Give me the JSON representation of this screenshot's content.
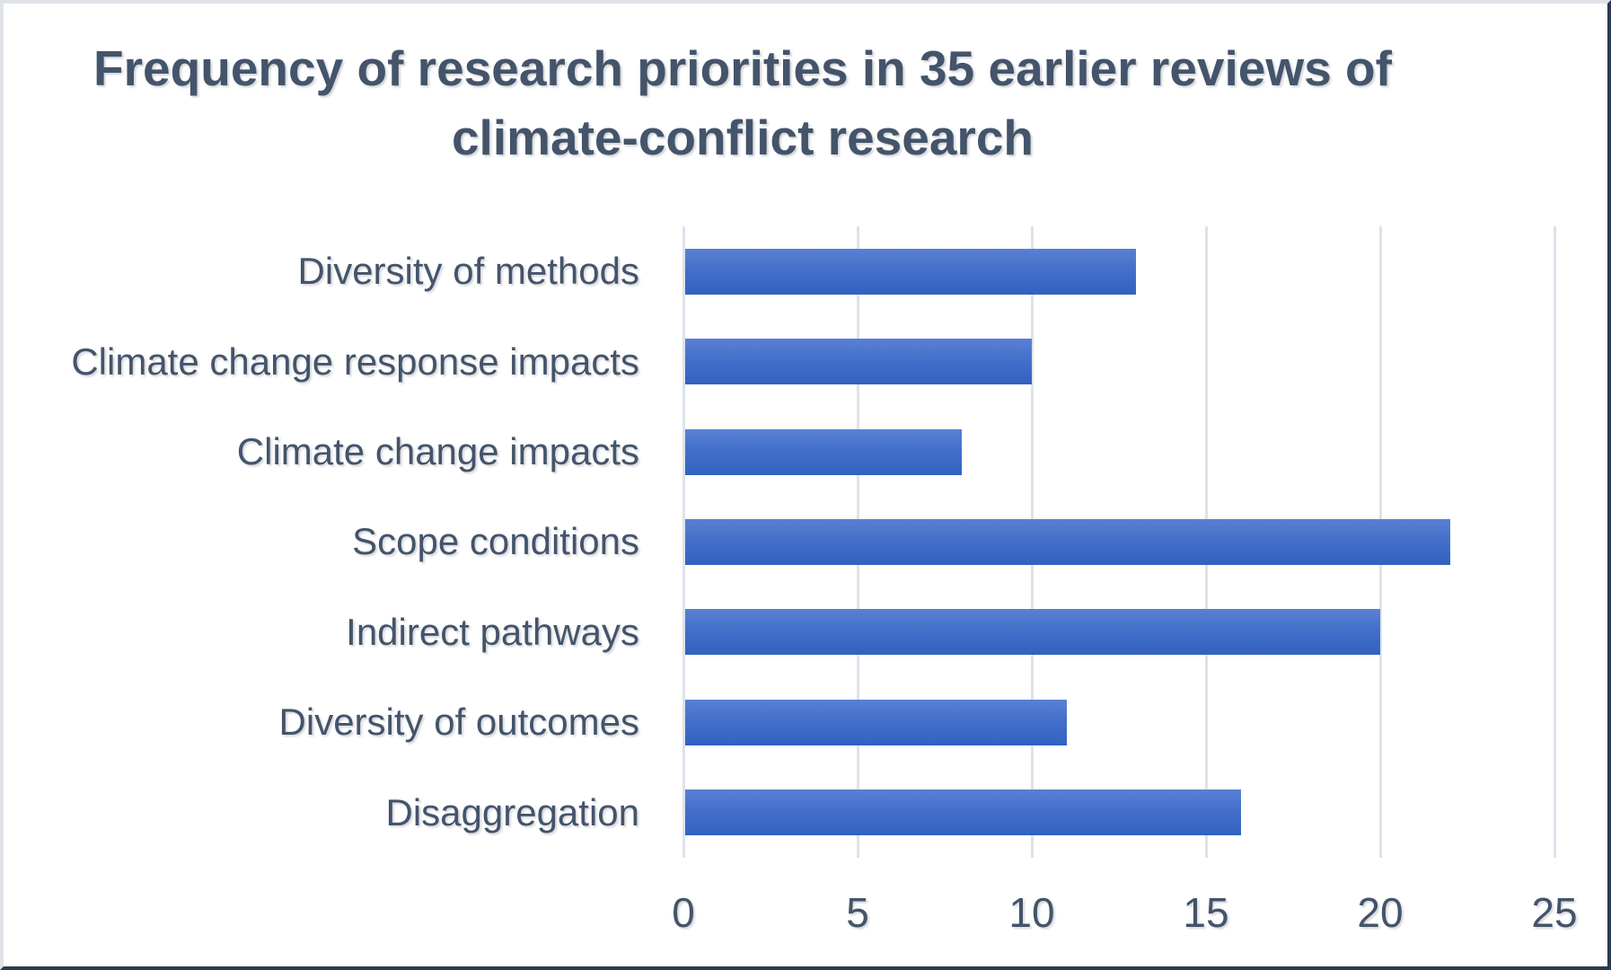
{
  "page": {
    "background": "#ffffff",
    "border_light_color": "#dfe3e8",
    "border_dark_color": "#2b3a4e",
    "text_color": "#44546A"
  },
  "chart_data": {
    "type": "bar",
    "orientation": "horizontal",
    "title": "Frequency of research priorities in 35 earlier reviews of climate-conflict research",
    "title_lines": [
      "Frequency of research priorities in 35 earlier reviews of",
      "climate-conflict research"
    ],
    "categories": [
      "Diversity of methods",
      "Climate change response impacts",
      "Climate change impacts",
      "Scope conditions",
      "Indirect pathways",
      "Diversity of outcomes",
      "Disaggregation"
    ],
    "values": [
      13,
      10,
      8,
      22,
      20,
      11,
      16
    ],
    "xticks": [
      0,
      5,
      10,
      15,
      20,
      25
    ],
    "xlim": [
      0,
      25
    ],
    "xlabel": "",
    "ylabel": "",
    "grid": true,
    "legend": false,
    "bar_color_top": "#5a80d4",
    "bar_color_bottom": "#3161c1",
    "gridline_color": "#dde2eb",
    "axis_text_color": "#44546A"
  }
}
